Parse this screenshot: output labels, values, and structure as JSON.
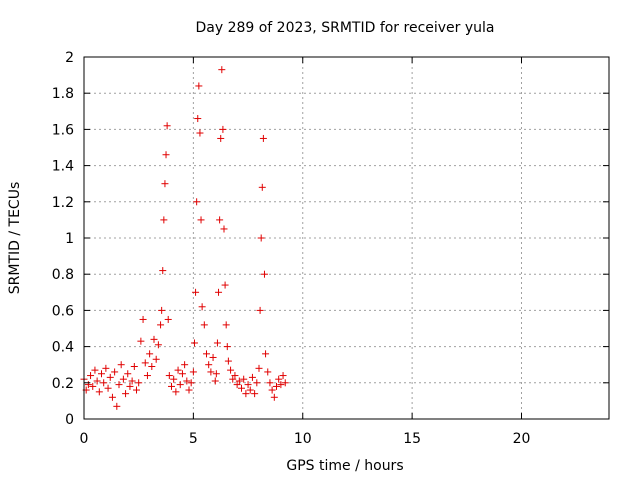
{
  "chart_data": {
    "type": "scatter",
    "title": "Day 289 of 2023, SRMTID for receiver yula",
    "xlabel": "GPS time / hours",
    "ylabel": "SRMTID / TECUs",
    "xlim": [
      0,
      24
    ],
    "ylim": [
      0,
      2
    ],
    "xticks": [
      0,
      5,
      10,
      15,
      20
    ],
    "xtick_labels": [
      "0",
      "5",
      "10",
      "15",
      "20"
    ],
    "yticks": [
      0,
      0.2,
      0.4,
      0.6,
      0.8,
      1,
      1.2,
      1.4,
      1.6,
      1.8,
      2
    ],
    "ytick_labels": [
      "0",
      "0.2",
      "0.4",
      "0.6",
      "0.8",
      "1",
      "1.2",
      "1.4",
      "1.6",
      "1.8",
      "2"
    ],
    "grid": true,
    "marker": "+",
    "color": "#e00000",
    "series": [
      {
        "name": "SRMTID",
        "x": [
          0.0,
          0.1,
          0.2,
          0.3,
          0.4,
          0.5,
          0.6,
          0.7,
          0.8,
          0.9,
          1.0,
          1.1,
          1.2,
          1.3,
          1.4,
          1.5,
          1.6,
          1.7,
          1.8,
          1.9,
          2.0,
          2.1,
          2.2,
          2.3,
          2.4,
          2.5,
          2.6,
          2.7,
          2.8,
          2.9,
          3.0,
          3.1,
          3.2,
          3.3,
          3.4,
          3.5,
          3.55,
          3.6,
          3.65,
          3.7,
          3.75,
          3.8,
          3.85,
          3.9,
          4.0,
          4.1,
          4.2,
          4.3,
          4.4,
          4.5,
          4.6,
          4.7,
          4.8,
          4.9,
          5.0,
          5.05,
          5.1,
          5.15,
          5.2,
          5.25,
          5.3,
          5.35,
          5.4,
          5.5,
          5.6,
          5.7,
          5.8,
          5.9,
          6.0,
          6.05,
          6.1,
          6.15,
          6.2,
          6.25,
          6.3,
          6.35,
          6.4,
          6.45,
          6.5,
          6.55,
          6.6,
          6.7,
          6.8,
          6.9,
          7.0,
          7.1,
          7.2,
          7.3,
          7.4,
          7.5,
          7.6,
          7.7,
          7.8,
          7.9,
          8.0,
          8.05,
          8.1,
          8.15,
          8.2,
          8.25,
          8.3,
          8.4,
          8.5,
          8.6,
          8.7,
          8.8,
          8.9,
          9.0,
          9.1,
          9.2
        ],
        "y": [
          0.22,
          0.16,
          0.19,
          0.24,
          0.18,
          0.27,
          0.21,
          0.15,
          0.25,
          0.2,
          0.28,
          0.17,
          0.23,
          0.12,
          0.26,
          0.07,
          0.19,
          0.3,
          0.22,
          0.14,
          0.25,
          0.18,
          0.21,
          0.29,
          0.16,
          0.2,
          0.43,
          0.55,
          0.31,
          0.24,
          0.36,
          0.29,
          0.44,
          0.33,
          0.41,
          0.52,
          0.6,
          0.82,
          1.1,
          1.3,
          1.46,
          1.62,
          0.55,
          0.24,
          0.18,
          0.22,
          0.15,
          0.27,
          0.19,
          0.25,
          0.3,
          0.21,
          0.16,
          0.2,
          0.26,
          0.42,
          0.7,
          1.2,
          1.66,
          1.84,
          1.58,
          1.1,
          0.62,
          0.52,
          0.36,
          0.3,
          0.26,
          0.34,
          0.21,
          0.25,
          0.42,
          0.7,
          1.1,
          1.55,
          1.93,
          1.6,
          1.05,
          0.74,
          0.52,
          0.4,
          0.32,
          0.27,
          0.22,
          0.24,
          0.19,
          0.21,
          0.17,
          0.22,
          0.14,
          0.19,
          0.16,
          0.23,
          0.14,
          0.2,
          0.28,
          0.6,
          1.0,
          1.28,
          1.55,
          0.8,
          0.36,
          0.26,
          0.2,
          0.16,
          0.12,
          0.18,
          0.22,
          0.19,
          0.24,
          0.2
        ]
      }
    ]
  }
}
